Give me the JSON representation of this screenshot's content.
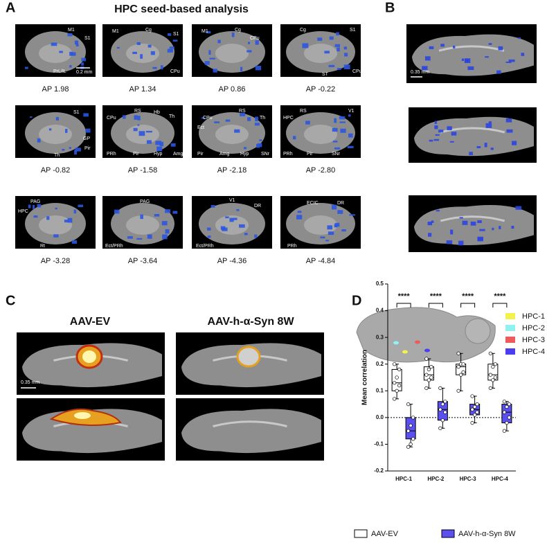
{
  "panel_labels": [
    "A",
    "B",
    "C",
    "D"
  ],
  "panel_a": {
    "title": "HPC seed-based analysis",
    "scale_bar": "0.2 mm",
    "slices": [
      {
        "ap": "AP 1.98",
        "labels": [
          "M1",
          "S1",
          "PrL/IL"
        ]
      },
      {
        "ap": "AP 1.34",
        "labels": [
          "M1",
          "Cg",
          "S1",
          "CPu"
        ]
      },
      {
        "ap": "AP 0.86",
        "labels": [
          "M1",
          "Cg",
          "CPu"
        ]
      },
      {
        "ap": "AP -0.22",
        "labels": [
          "Cg",
          "S1",
          "ST",
          "CPu"
        ]
      },
      {
        "ap": "AP -0.82",
        "labels": [
          "S1",
          "GP",
          "Pir",
          "Th"
        ]
      },
      {
        "ap": "AP -1.58",
        "labels": [
          "RS",
          "Hb",
          "CPu",
          "Th",
          "Pir",
          "PRh",
          "Hyp",
          "Amg"
        ]
      },
      {
        "ap": "AP -2.18",
        "labels": [
          "CPu",
          "RS",
          "Ect",
          "Th",
          "Pir",
          "Amg",
          "Hyp",
          "SNr"
        ]
      },
      {
        "ap": "AP -2.80",
        "labels": [
          "RS",
          "V1",
          "HPC",
          "PRh",
          "Pir",
          "SNr"
        ]
      },
      {
        "ap": "AP -3.28",
        "labels": [
          "PAG",
          "HPC",
          "Rt"
        ]
      },
      {
        "ap": "AP -3.64",
        "labels": [
          "PAG",
          "Ect/PRh"
        ]
      },
      {
        "ap": "AP -4.36",
        "labels": [
          "V1",
          "DR",
          "Ect/PRh"
        ]
      },
      {
        "ap": "AP -4.84",
        "labels": [
          "ECIC",
          "DR",
          "PRh"
        ]
      }
    ]
  },
  "panel_b": {
    "scale_bar": "0.35 mm"
  },
  "panel_c": {
    "columns": [
      "AAV-EV",
      "AAV-h-α-Syn 8W"
    ],
    "scale_bar": "0.35 mm"
  },
  "panel_d": {
    "legend": [
      {
        "name": "HPC-1",
        "color": "#f2f24a"
      },
      {
        "name": "HPC-2",
        "color": "#8ff2f2"
      },
      {
        "name": "HPC-3",
        "color": "#f05a5a"
      },
      {
        "name": "HPC-4",
        "color": "#4a3ef0"
      }
    ]
  },
  "chart_data": {
    "type": "box",
    "y_label": "Mean correlation",
    "categories": [
      "HPC-1",
      "HPC-2",
      "HPC-3",
      "HPC-4"
    ],
    "ylim": [
      -0.2,
      0.5
    ],
    "yticks": [
      -0.2,
      -0.1,
      {
        "value": 0,
        "label": "0.0"
      },
      0.1,
      0.2,
      0.3,
      0.4,
      0.5
    ],
    "reference_line": 0,
    "annotations": [
      "****",
      "****",
      "****",
      "****"
    ],
    "series": [
      {
        "name": "AAV-EV",
        "color": "#ffffff",
        "min": [
          0.07,
          0.11,
          0.1,
          0.11
        ],
        "q1": [
          0.1,
          0.14,
          0.16,
          0.14
        ],
        "median": [
          0.13,
          0.16,
          0.19,
          0.16
        ],
        "q3": [
          0.18,
          0.19,
          0.2,
          0.2
        ],
        "max": [
          0.2,
          0.22,
          0.24,
          0.24
        ],
        "points": [
          [
            0.07,
            0.1,
            0.12,
            0.13,
            0.15,
            0.18,
            0.2
          ],
          [
            0.11,
            0.14,
            0.15,
            0.16,
            0.18,
            0.19,
            0.22
          ],
          [
            0.1,
            0.16,
            0.17,
            0.19,
            0.2,
            0.2,
            0.24
          ],
          [
            0.11,
            0.14,
            0.15,
            0.16,
            0.19,
            0.2,
            0.24
          ]
        ]
      },
      {
        "name": "AAV-h-α-Syn 8W",
        "color": "#5b4ff0",
        "min": [
          -0.11,
          -0.04,
          -0.02,
          -0.05
        ],
        "q1": [
          -0.08,
          -0.01,
          0.01,
          -0.02
        ],
        "median": [
          -0.05,
          0.03,
          0.03,
          0.02
        ],
        "q3": [
          0.0,
          0.06,
          0.05,
          0.05
        ],
        "max": [
          0.05,
          0.11,
          0.08,
          0.06
        ],
        "points": [
          [
            -0.11,
            -0.1,
            -0.08,
            -0.05,
            -0.03,
            0.0,
            0.05
          ],
          [
            -0.04,
            -0.01,
            0.02,
            0.03,
            0.05,
            0.06,
            0.11
          ],
          [
            -0.02,
            0.01,
            0.02,
            0.03,
            0.04,
            0.05,
            0.08
          ],
          [
            -0.05,
            -0.02,
            0.0,
            0.02,
            0.04,
            0.05,
            0.06
          ]
        ]
      }
    ]
  }
}
